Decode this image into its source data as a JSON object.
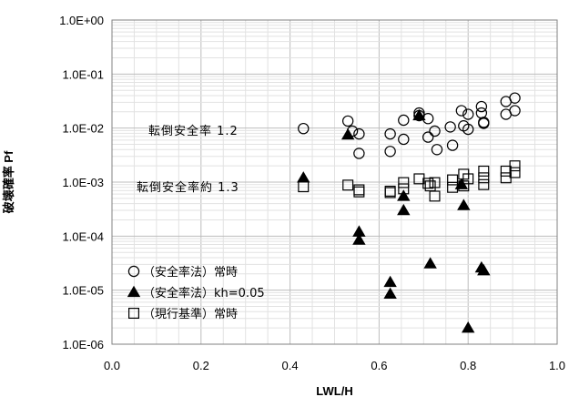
{
  "chart_data": {
    "type": "scatter",
    "title": "",
    "xlabel": "LWL/H",
    "ylabel": "破壊確率 Pf",
    "xlim": [
      0.0,
      1.0
    ],
    "ylim": [
      1e-06,
      1
    ],
    "yscale": "log",
    "grid": true,
    "legend_position": "bottom-left",
    "x_ticks": [
      "0.0",
      "0.2",
      "0.4",
      "0.6",
      "0.8",
      "1.0"
    ],
    "y_ticks": [
      "1.0E+00",
      "1.0E-01",
      "1.0E-02",
      "1.0E-03",
      "1.0E-04",
      "1.0E-05",
      "1.0E-06"
    ],
    "annotations": [
      "転倒安全率 1.2",
      "転倒安全率約 1.3"
    ],
    "series": [
      {
        "name": "（安全率法）常時",
        "marker": "circle-open",
        "points": [
          [
            0.43,
            0.0098
          ],
          [
            0.53,
            0.0135
          ],
          [
            0.54,
            0.0088
          ],
          [
            0.555,
            0.0078
          ],
          [
            0.555,
            0.0034
          ],
          [
            0.625,
            0.0078
          ],
          [
            0.625,
            0.0037
          ],
          [
            0.655,
            0.014
          ],
          [
            0.655,
            0.0062
          ],
          [
            0.69,
            0.019
          ],
          [
            0.69,
            0.017
          ],
          [
            0.71,
            0.015
          ],
          [
            0.71,
            0.0068
          ],
          [
            0.725,
            0.0088
          ],
          [
            0.73,
            0.004
          ],
          [
            0.76,
            0.0105
          ],
          [
            0.765,
            0.0048
          ],
          [
            0.785,
            0.021
          ],
          [
            0.79,
            0.011
          ],
          [
            0.8,
            0.018
          ],
          [
            0.8,
            0.0095
          ],
          [
            0.83,
            0.025
          ],
          [
            0.83,
            0.019
          ],
          [
            0.835,
            0.0128
          ],
          [
            0.835,
            0.0122
          ],
          [
            0.885,
            0.031
          ],
          [
            0.885,
            0.018
          ],
          [
            0.905,
            0.036
          ],
          [
            0.905,
            0.021
          ]
        ]
      },
      {
        "name": "（安全率法）kh=0.05",
        "marker": "triangle-filled",
        "points": [
          [
            0.43,
            0.0012
          ],
          [
            0.53,
            0.0075
          ],
          [
            0.555,
            0.00012
          ],
          [
            0.555,
            8.5e-05
          ],
          [
            0.625,
            1.4e-05
          ],
          [
            0.625,
            8.5e-06
          ],
          [
            0.655,
            0.00055
          ],
          [
            0.655,
            0.0003
          ],
          [
            0.69,
            0.017
          ],
          [
            0.715,
            3.1e-05
          ],
          [
            0.785,
            0.0009
          ],
          [
            0.79,
            0.00037
          ],
          [
            0.8,
            2e-06
          ],
          [
            0.83,
            2.6e-05
          ],
          [
            0.835,
            2.3e-05
          ]
        ]
      },
      {
        "name": "（現行基準）常時",
        "marker": "square-open",
        "points": [
          [
            0.43,
            0.00082
          ],
          [
            0.53,
            0.00088
          ],
          [
            0.555,
            0.00072
          ],
          [
            0.555,
            0.00066
          ],
          [
            0.625,
            0.00068
          ],
          [
            0.625,
            0.00064
          ],
          [
            0.655,
            0.00098
          ],
          [
            0.655,
            0.00075
          ],
          [
            0.69,
            0.00115
          ],
          [
            0.71,
            0.00095
          ],
          [
            0.715,
            0.00085
          ],
          [
            0.725,
            0.00098
          ],
          [
            0.725,
            0.00055
          ],
          [
            0.765,
            0.0011
          ],
          [
            0.765,
            0.0008
          ],
          [
            0.79,
            0.0014
          ],
          [
            0.79,
            0.00085
          ],
          [
            0.8,
            0.00115
          ],
          [
            0.835,
            0.0016
          ],
          [
            0.835,
            0.0012
          ],
          [
            0.835,
            0.0009
          ],
          [
            0.885,
            0.0016
          ],
          [
            0.885,
            0.0012
          ],
          [
            0.905,
            0.002
          ],
          [
            0.905,
            0.0015
          ]
        ]
      }
    ]
  }
}
